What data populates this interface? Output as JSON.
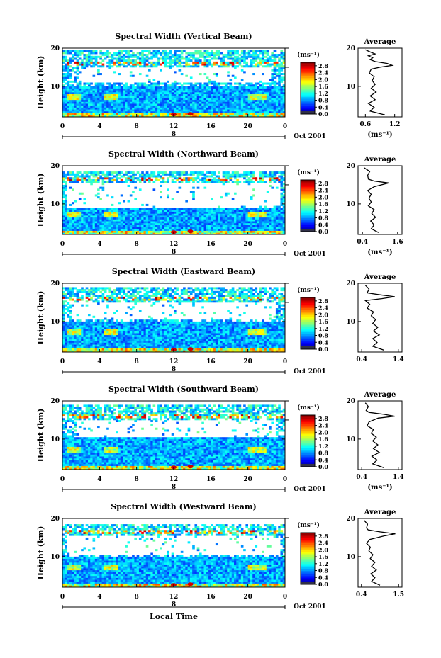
{
  "chart_data": [
    {
      "type": "heatmap",
      "title": "Spectral Width (Vertical Beam)",
      "ylabel": "Height (km)",
      "xlabel": "",
      "xlim": [
        0,
        24
      ],
      "ylim": [
        2,
        20
      ],
      "xticks": [
        "0",
        "4",
        "8",
        "12",
        "16",
        "20",
        "0"
      ],
      "yticks": [
        "10",
        "20"
      ],
      "date_marker": "8",
      "date_label": "Oct 2001",
      "colorbar": {
        "unit": "(ms⁻¹)",
        "ticks": [
          "0.0",
          "0.4",
          "0.8",
          "1.2",
          "1.6",
          "2.0",
          "2.4",
          "2.8"
        ],
        "range": [
          0,
          3.0
        ]
      },
      "features": {
        "high_band_top": 19.2,
        "high_band_bottom": 15.0,
        "gap_top": 15.0,
        "gap_bottom": 11.0,
        "gap_start_hour": 2.0,
        "gap_end_hour": 22.5,
        "low_top": 11.0
      },
      "average": {
        "title": "Average",
        "xlabel": "(ms⁻¹)",
        "xticks": [
          "0.6",
          "1.2"
        ],
        "xlim": [
          0.45,
          1.35
        ],
        "profile": [
          [
            2.5,
            1.0
          ],
          [
            3.5,
            0.7
          ],
          [
            4.5,
            0.78
          ],
          [
            5.5,
            0.66
          ],
          [
            6.5,
            0.8
          ],
          [
            7.5,
            0.7
          ],
          [
            8.5,
            0.82
          ],
          [
            9.5,
            0.72
          ],
          [
            10.5,
            0.8
          ],
          [
            11.5,
            0.74
          ],
          [
            12.5,
            0.78
          ],
          [
            13.5,
            0.68
          ],
          [
            14.5,
            0.72
          ],
          [
            15.0,
            0.9
          ],
          [
            15.5,
            1.15
          ],
          [
            16.0,
            1.05
          ],
          [
            16.5,
            0.8
          ],
          [
            17.0,
            0.7
          ],
          [
            17.5,
            0.75
          ],
          [
            18.0,
            0.66
          ],
          [
            18.5,
            0.8
          ],
          [
            19.0,
            0.7
          ],
          [
            19.6,
            0.6
          ]
        ]
      }
    },
    {
      "type": "heatmap",
      "title": "Spectral Width (Northward Beam)",
      "ylabel": "Height (km)",
      "xlabel": "",
      "xlim": [
        0,
        24
      ],
      "ylim": [
        2,
        20
      ],
      "xticks": [
        "0",
        "4",
        "8",
        "12",
        "16",
        "20",
        "0"
      ],
      "yticks": [
        "10",
        "20"
      ],
      "date_marker": "8",
      "date_label": "Oct 2001",
      "colorbar": {
        "unit": "(ms⁻¹)",
        "ticks": [
          "0.0",
          "0.4",
          "0.8",
          "1.2",
          "1.6",
          "2.0",
          "2.4",
          "2.8"
        ],
        "range": [
          0,
          3.0
        ]
      },
      "features": {
        "high_band_top": 18.5,
        "high_band_bottom": 15.5,
        "gap_top": 15.5,
        "gap_bottom": 9.0,
        "gap_start_hour": 0.5,
        "gap_end_hour": 23.5,
        "low_top": 10.0
      },
      "average": {
        "title": "Average",
        "xlabel": "(ms⁻¹)",
        "xticks": [
          "0.4",
          "1.6"
        ],
        "xlim": [
          0.25,
          1.75
        ],
        "profile": [
          [
            2.5,
            0.95
          ],
          [
            3.5,
            0.7
          ],
          [
            4.5,
            0.8
          ],
          [
            5.5,
            0.68
          ],
          [
            6.5,
            0.85
          ],
          [
            7.5,
            0.72
          ],
          [
            8.5,
            0.8
          ],
          [
            9.5,
            0.6
          ],
          [
            10.5,
            0.7
          ],
          [
            11.5,
            0.62
          ],
          [
            12.5,
            0.7
          ],
          [
            13.5,
            0.58
          ],
          [
            14.5,
            0.8
          ],
          [
            15.5,
            1.3
          ],
          [
            16.0,
            0.8
          ],
          [
            16.5,
            0.6
          ],
          [
            17.5,
            0.58
          ],
          [
            18.5,
            0.65
          ],
          [
            19.5,
            0.45
          ]
        ]
      }
    },
    {
      "type": "heatmap",
      "title": "Spectral Width (Eastward Beam)",
      "ylabel": "Height (km)",
      "xlabel": "",
      "xlim": [
        0,
        24
      ],
      "ylim": [
        2,
        20
      ],
      "xticks": [
        "0",
        "4",
        "8",
        "12",
        "16",
        "20",
        "0"
      ],
      "yticks": [
        "10",
        "20"
      ],
      "date_marker": "8",
      "date_label": "Oct 2001",
      "colorbar": {
        "unit": "(ms⁻¹)",
        "ticks": [
          "0.0",
          "0.4",
          "0.8",
          "1.2",
          "1.6",
          "2.0",
          "2.4",
          "2.8"
        ],
        "range": [
          0,
          3.0
        ]
      },
      "features": {
        "high_band_top": 18.8,
        "high_band_bottom": 15.0,
        "gap_top": 15.0,
        "gap_bottom": 10.5,
        "gap_start_hour": 1.0,
        "gap_end_hour": 23.0,
        "low_top": 11.0
      },
      "average": {
        "title": "Average",
        "xlabel": "",
        "xticks": [
          "0.4",
          "1.4"
        ],
        "xlim": [
          0.3,
          1.5
        ],
        "profile": [
          [
            2.5,
            1.0
          ],
          [
            3.5,
            0.7
          ],
          [
            4.5,
            0.82
          ],
          [
            5.5,
            0.7
          ],
          [
            6.5,
            0.88
          ],
          [
            7.5,
            0.72
          ],
          [
            8.5,
            0.84
          ],
          [
            9.5,
            0.7
          ],
          [
            10.5,
            0.78
          ],
          [
            11.5,
            0.66
          ],
          [
            12.5,
            0.72
          ],
          [
            13.5,
            0.55
          ],
          [
            14.5,
            0.62
          ],
          [
            15.5,
            0.5
          ],
          [
            16.0,
            0.95
          ],
          [
            16.5,
            1.3
          ],
          [
            17.0,
            0.9
          ],
          [
            17.5,
            0.55
          ],
          [
            18.5,
            0.6
          ],
          [
            19.5,
            0.5
          ]
        ]
      }
    },
    {
      "type": "heatmap",
      "title": "Spectral Width (Southward Beam)",
      "ylabel": "Height (km)",
      "xlabel": "",
      "xlim": [
        0,
        24
      ],
      "ylim": [
        2,
        20
      ],
      "xticks": [
        "0",
        "4",
        "8",
        "12",
        "16",
        "20",
        "0"
      ],
      "yticks": [
        "10",
        "20"
      ],
      "date_marker": "8",
      "date_label": "Oct 2001",
      "colorbar": {
        "unit": "(ms⁻¹)",
        "ticks": [
          "0.0",
          "0.4",
          "0.8",
          "1.2",
          "1.6",
          "2.0",
          "2.4",
          "2.8"
        ],
        "range": [
          0,
          3.0
        ]
      },
      "features": {
        "high_band_top": 18.8,
        "high_band_bottom": 15.0,
        "gap_top": 15.0,
        "gap_bottom": 10.5,
        "gap_start_hour": 1.5,
        "gap_end_hour": 23.0,
        "low_top": 11.5
      },
      "average": {
        "title": "Average",
        "xlabel": "(ms⁻¹)",
        "xticks": [
          "0.4",
          "1.4"
        ],
        "xlim": [
          0.3,
          1.5
        ],
        "profile": [
          [
            2.5,
            1.0
          ],
          [
            3.5,
            0.7
          ],
          [
            4.5,
            0.82
          ],
          [
            5.5,
            0.68
          ],
          [
            6.5,
            0.88
          ],
          [
            7.5,
            0.72
          ],
          [
            8.5,
            0.84
          ],
          [
            9.5,
            0.7
          ],
          [
            10.5,
            0.8
          ],
          [
            11.5,
            0.66
          ],
          [
            12.5,
            0.72
          ],
          [
            13.5,
            0.55
          ],
          [
            14.5,
            0.6
          ],
          [
            15.5,
            0.85
          ],
          [
            16.0,
            1.3
          ],
          [
            16.5,
            1.0
          ],
          [
            17.0,
            0.6
          ],
          [
            17.5,
            0.52
          ],
          [
            18.5,
            0.58
          ],
          [
            19.5,
            0.5
          ]
        ]
      }
    },
    {
      "type": "heatmap",
      "title": "Spectral Width (Westward Beam)",
      "ylabel": "Height (km)",
      "xlabel": "Local Time",
      "xlim": [
        0,
        24
      ],
      "ylim": [
        2,
        20
      ],
      "xticks": [
        "0",
        "4",
        "8",
        "12",
        "16",
        "20",
        "0"
      ],
      "yticks": [
        "10",
        "20"
      ],
      "date_marker": "8",
      "date_label": "Oct 2001",
      "colorbar": {
        "unit": "(ms⁻¹)",
        "ticks": [
          "0.0",
          "0.4",
          "0.8",
          "1.2",
          "1.6",
          "2.0",
          "2.4",
          "2.8"
        ],
        "range": [
          0,
          3.0
        ]
      },
      "features": {
        "high_band_top": 18.5,
        "high_band_bottom": 15.5,
        "gap_top": 15.5,
        "gap_bottom": 10.5,
        "gap_start_hour": 0.5,
        "gap_end_hour": 23.5,
        "low_top": 11.0
      },
      "average": {
        "title": "Average",
        "xlabel": "",
        "xticks": [
          "0.4",
          "1.5"
        ],
        "xlim": [
          0.3,
          1.6
        ],
        "profile": [
          [
            2.5,
            0.95
          ],
          [
            3.5,
            0.7
          ],
          [
            4.5,
            0.8
          ],
          [
            5.5,
            0.68
          ],
          [
            6.5,
            0.84
          ],
          [
            7.5,
            0.7
          ],
          [
            8.5,
            0.8
          ],
          [
            9.5,
            0.66
          ],
          [
            10.5,
            0.74
          ],
          [
            11.5,
            0.62
          ],
          [
            12.5,
            0.66
          ],
          [
            13.5,
            0.55
          ],
          [
            14.5,
            0.65
          ],
          [
            15.5,
            1.1
          ],
          [
            16.0,
            1.4
          ],
          [
            16.5,
            0.95
          ],
          [
            17.0,
            0.6
          ],
          [
            17.5,
            0.55
          ],
          [
            18.5,
            0.58
          ],
          [
            19.5,
            0.48
          ]
        ]
      }
    }
  ]
}
